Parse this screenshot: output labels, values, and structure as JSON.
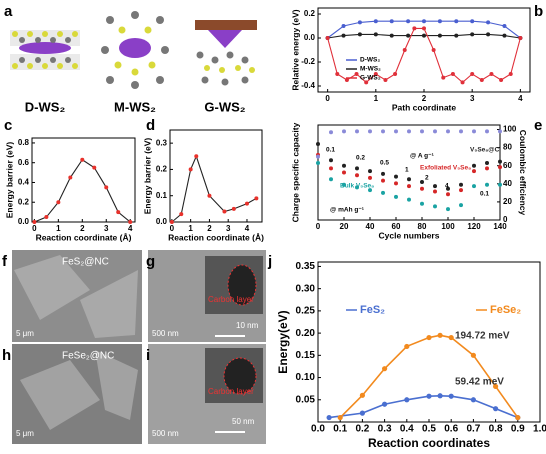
{
  "panel_labels": [
    "a",
    "b",
    "c",
    "d",
    "e",
    "f",
    "g",
    "h",
    "i",
    "j"
  ],
  "structures": {
    "labels": [
      "D-WS₂",
      "M-WS₂",
      "G-WS₂"
    ]
  },
  "micrographs": [
    {
      "texts": [
        "FeS₂@NC",
        "5 μm"
      ]
    },
    {
      "texts": [
        "500 nm",
        "Carbon layer",
        "10 nm"
      ]
    },
    {
      "texts": [
        "FeSe₂@NC",
        "5 μm"
      ]
    },
    {
      "texts": [
        "500 nm",
        "Carbon layer",
        "50 nm"
      ]
    }
  ],
  "chart_data": [
    {
      "type": "line",
      "y_label": "Relative energy (eV)",
      "x_label": "Path coordinate",
      "xlim": [
        -0.2,
        4.2
      ],
      "xticks": [
        0,
        1,
        2,
        3,
        4
      ],
      "ylim": [
        -0.45,
        0.25
      ],
      "yticks": [
        -0.4,
        -0.2,
        {
          "value": 0,
          "label": "0.0"
        },
        0.2
      ],
      "series": [
        {
          "name": "D-WS₂",
          "color": "#4a5fd0",
          "x": [
            0,
            0.33,
            0.67,
            1,
            1.33,
            1.67,
            2,
            2.33,
            2.67,
            3,
            3.33,
            3.67,
            4
          ],
          "values": [
            0,
            0.1,
            0.13,
            0.14,
            0.14,
            0.14,
            0.14,
            0.14,
            0.14,
            0.14,
            0.13,
            0.1,
            0
          ]
        },
        {
          "name": "M-WS₂",
          "color": "#222222",
          "x": [
            0,
            0.33,
            0.67,
            1,
            1.33,
            1.67,
            2,
            2.33,
            2.67,
            3,
            3.33,
            3.67,
            4
          ],
          "values": [
            0,
            0.02,
            0.03,
            0.03,
            0.02,
            0.02,
            0.02,
            0.02,
            0.02,
            0.03,
            0.03,
            0.02,
            0
          ]
        },
        {
          "name": "G-WS₂",
          "color": "#e0303a",
          "x": [
            0,
            0.2,
            0.4,
            0.6,
            0.8,
            1,
            1.2,
            1.4,
            1.6,
            1.8,
            2,
            2.2,
            2.4,
            2.6,
            2.8,
            3,
            3.2,
            3.4,
            3.6,
            3.8,
            4
          ],
          "values": [
            0,
            -0.3,
            -0.35,
            -0.3,
            -0.37,
            -0.3,
            -0.35,
            -0.3,
            -0.1,
            0.08,
            0.08,
            -0.1,
            -0.33,
            -0.3,
            -0.37,
            -0.3,
            -0.35,
            -0.3,
            -0.35,
            -0.3,
            0
          ]
        }
      ]
    },
    {
      "type": "line",
      "y_label": "Energy barrier (eV)",
      "x_label": "Reaction coordinate (Å)",
      "line_color": "#222222",
      "xlim": [
        -0.1,
        4.2
      ],
      "xticks": [
        0,
        1,
        2,
        3,
        4
      ],
      "ylim": [
        0,
        0.85
      ],
      "yticks": [
        {
          "value": 0,
          "label": "0.0"
        },
        0.2,
        0.4,
        0.6,
        0.8
      ],
      "series": [
        {
          "color": "#e8312b",
          "x": [
            0,
            0.5,
            1,
            1.5,
            2,
            2.5,
            3,
            3.5,
            4
          ],
          "values": [
            0,
            0.05,
            0.2,
            0.45,
            0.63,
            0.55,
            0.35,
            0.1,
            0
          ]
        }
      ]
    },
    {
      "type": "line",
      "y_label": "Energy barrier (eV)",
      "x_label": "Reaction coordinate (Å)",
      "line_color": "#222222",
      "xlim": [
        -0.1,
        4.8
      ],
      "xticks": [
        0,
        1,
        2,
        3,
        4
      ],
      "ylim": [
        0,
        0.35
      ],
      "yticks": [
        {
          "value": 0,
          "label": "0.0"
        },
        0.1,
        0.2,
        0.3
      ],
      "series": [
        {
          "color": "#e8312b",
          "x": [
            0,
            0.5,
            1,
            1.3,
            2,
            2.8,
            3.3,
            4,
            4.5
          ],
          "values": [
            0,
            0.03,
            0.2,
            0.25,
            0.1,
            0.04,
            0.05,
            0.07,
            0.09
          ]
        }
      ]
    },
    {
      "type": "scatter",
      "y_label": "Charge specific capacity",
      "x_label": "Cycle numbers",
      "y2_label": "Coulombic efficiency",
      "xlim": [
        0,
        140
      ],
      "xticks": [
        0,
        20,
        40,
        60,
        80,
        100,
        120,
        140
      ],
      "ylim": [
        0,
        700
      ],
      "y2lim": [
        0,
        105
      ],
      "y2ticks": [
        0,
        20,
        40,
        60,
        80,
        100
      ],
      "x": [
        0,
        10,
        20,
        30,
        40,
        50,
        60,
        70,
        80,
        90,
        100,
        110,
        120,
        130,
        140
      ],
      "series": [
        {
          "name": "V₅Se₈@C",
          "color": "#222222",
          "values": [
            560,
            440,
            400,
            380,
            360,
            340,
            320,
            300,
            280,
            250,
            230,
            260,
            400,
            420,
            430
          ]
        },
        {
          "name": "Exfoliated V₅Se₈",
          "color": "#d62728",
          "values": [
            480,
            380,
            350,
            330,
            310,
            290,
            270,
            250,
            230,
            210,
            190,
            220,
            360,
            380,
            390
          ]
        },
        {
          "name": "Bulk V₅Se₈",
          "color": "#1aa3a3",
          "values": [
            420,
            300,
            260,
            240,
            220,
            200,
            170,
            150,
            120,
            100,
            80,
            110,
            250,
            260,
            260
          ]
        },
        {
          "color": "#8a8ad8",
          "axis": "y2",
          "values": [
            70,
            97,
            98,
            98,
            98,
            98,
            98,
            98,
            98,
            98,
            98,
            98,
            98,
            98,
            98
          ]
        }
      ],
      "annotations": [
        "0.1",
        "0.2",
        "0.5",
        "1",
        "2",
        "4",
        "@ A g⁻¹",
        "0.1",
        "@ mAh g⁻¹"
      ]
    },
    {
      "type": "line",
      "y_label": "Energy(eV)",
      "x_label": "Reaction coordinates",
      "xlim": [
        0,
        1
      ],
      "xticks": [
        {
          "value": 0,
          "label": "0.0"
        },
        0.1,
        0.2,
        0.3,
        0.4,
        0.5,
        0.6,
        0.7,
        0.8,
        0.9,
        {
          "value": 1,
          "label": "1.0"
        }
      ],
      "ylim": [
        0,
        0.36
      ],
      "yticks": [
        0.05,
        {
          "value": 0.1,
          "label": "0.10"
        },
        0.15,
        {
          "value": 0.2,
          "label": "0.20"
        },
        0.25,
        {
          "value": 0.3,
          "label": "0.30"
        },
        0.35
      ],
      "series": [
        {
          "name": "FeS₂",
          "color": "#4a6fd0",
          "x": [
            0.05,
            0.2,
            0.3,
            0.4,
            0.5,
            0.55,
            0.6,
            0.7,
            0.8,
            0.9
          ],
          "values": [
            0.01,
            0.02,
            0.04,
            0.05,
            0.058,
            0.059,
            0.058,
            0.05,
            0.03,
            0.01
          ]
        },
        {
          "name": "FeSe₂",
          "color": "#f28a1e",
          "x": [
            0.1,
            0.2,
            0.3,
            0.4,
            0.5,
            0.55,
            0.6,
            0.7,
            0.8,
            0.9
          ],
          "values": [
            0.01,
            0.06,
            0.12,
            0.17,
            0.19,
            0.195,
            0.19,
            0.15,
            0.08,
            0.01
          ]
        }
      ],
      "annotations": [
        "194.72 meV",
        "59.42 meV"
      ]
    }
  ]
}
